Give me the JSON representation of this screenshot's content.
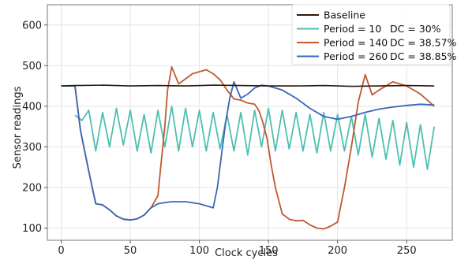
{
  "chart_data": {
    "type": "line",
    "xlabel": "Clock cycles",
    "ylabel": "Sensor readings",
    "xlim": [
      -10,
      283
    ],
    "ylim": [
      70,
      650
    ],
    "xticks": [
      0,
      50,
      100,
      150,
      200,
      250
    ],
    "yticks": [
      100,
      200,
      300,
      400,
      500,
      600
    ],
    "grid": true,
    "legend_position": "top-right",
    "series": [
      {
        "name": "Baseline",
        "legend_extra": "",
        "color": "#2b1a0e",
        "x": [
          0,
          10,
          30,
          50,
          70,
          90,
          110,
          130,
          150,
          170,
          190,
          210,
          230,
          250,
          270
        ],
        "y": [
          450,
          451,
          452,
          450,
          451,
          450,
          452,
          451,
          450,
          450,
          451,
          449,
          450,
          451,
          450
        ]
      },
      {
        "name": "Period = 10",
        "legend_extra": "DC = 30%",
        "color": "#4dbfb0",
        "x": [
          10,
          15,
          20,
          25,
          30,
          35,
          40,
          45,
          50,
          55,
          60,
          65,
          70,
          75,
          80,
          85,
          90,
          95,
          100,
          105,
          110,
          115,
          120,
          125,
          130,
          135,
          140,
          145,
          150,
          155,
          160,
          165,
          170,
          175,
          180,
          185,
          190,
          195,
          200,
          205,
          210,
          215,
          220,
          225,
          230,
          235,
          240,
          245,
          250,
          255,
          260,
          265,
          270
        ],
        "y": [
          378,
          365,
          390,
          290,
          385,
          300,
          395,
          305,
          390,
          290,
          380,
          285,
          390,
          300,
          400,
          290,
          395,
          300,
          390,
          290,
          385,
          295,
          380,
          290,
          385,
          280,
          390,
          300,
          395,
          290,
          390,
          295,
          385,
          290,
          380,
          285,
          385,
          290,
          380,
          290,
          375,
          280,
          380,
          275,
          370,
          270,
          365,
          255,
          360,
          250,
          355,
          245,
          350
        ]
      },
      {
        "name": "Period = 140",
        "legend_extra": "DC = 38.57%",
        "color": "#c0582f",
        "x": [
          0,
          10,
          14,
          20,
          25,
          30,
          35,
          40,
          45,
          50,
          55,
          60,
          65,
          70,
          72,
          75,
          77,
          80,
          85,
          95,
          105,
          110,
          115,
          120,
          125,
          130,
          135,
          140,
          143,
          146,
          149,
          152,
          155,
          160,
          165,
          170,
          175,
          180,
          185,
          190,
          195,
          200,
          205,
          210,
          215,
          220,
          225,
          230,
          240,
          250,
          260,
          270
        ],
        "y": [
          450,
          450,
          340,
          240,
          160,
          157,
          145,
          130,
          122,
          120,
          123,
          132,
          150,
          180,
          250,
          350,
          440,
          497,
          455,
          480,
          490,
          480,
          465,
          440,
          418,
          415,
          408,
          405,
          390,
          360,
          320,
          255,
          200,
          135,
          122,
          118,
          119,
          108,
          100,
          98,
          105,
          115,
          200,
          300,
          410,
          478,
          428,
          440,
          460,
          450,
          430,
          400
        ]
      },
      {
        "name": "Period = 260",
        "legend_extra": "DC = 38.85%",
        "color": "#3a66b8",
        "x": [
          0,
          10,
          14,
          20,
          25,
          30,
          35,
          40,
          45,
          50,
          55,
          60,
          65,
          70,
          75,
          80,
          90,
          100,
          110,
          113,
          116,
          119,
          122,
          125,
          130,
          135,
          140,
          145,
          150,
          160,
          170,
          180,
          190,
          200,
          210,
          220,
          230,
          240,
          250,
          260,
          270
        ],
        "y": [
          450,
          450,
          340,
          240,
          160,
          157,
          145,
          130,
          122,
          120,
          123,
          132,
          150,
          160,
          163,
          165,
          165,
          160,
          150,
          200,
          280,
          360,
          420,
          460,
          420,
          430,
          445,
          452,
          450,
          440,
          420,
          395,
          375,
          368,
          375,
          385,
          393,
          398,
          402,
          405,
          403
        ]
      }
    ]
  }
}
